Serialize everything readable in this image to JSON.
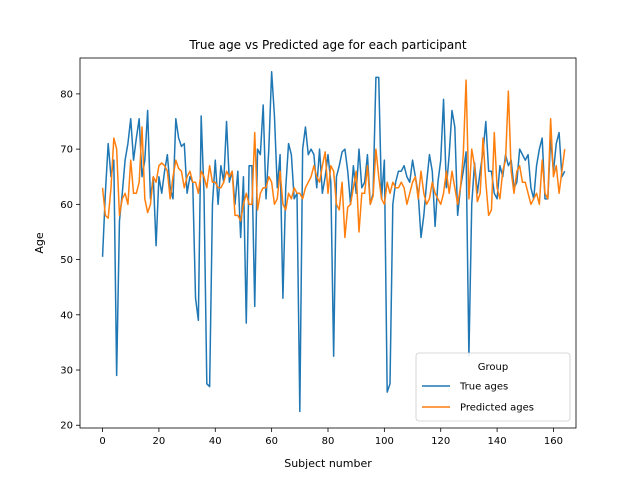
{
  "chart_data": {
    "type": "line",
    "title": "True age vs Predicted age for each participant",
    "xlabel": "Subject number",
    "ylabel": "Age",
    "xlim": [
      -8,
      168
    ],
    "ylim": [
      19.5,
      86.5
    ],
    "xticks": [
      0,
      20,
      40,
      60,
      80,
      100,
      120,
      140,
      160
    ],
    "yticks": [
      20,
      30,
      40,
      50,
      60,
      70,
      80
    ],
    "grid": false,
    "legend": {
      "title": "Group",
      "placement": "lower-right"
    },
    "series": [
      {
        "name": "True ages",
        "color": "#1f77b4",
        "values": [
          50.5,
          62,
          71,
          65,
          68,
          29,
          57,
          62,
          68,
          71,
          75.5,
          68,
          72,
          75.5,
          65,
          68,
          77,
          61,
          65,
          52.5,
          65,
          62,
          66,
          69,
          63,
          61,
          75.5,
          72,
          70.5,
          71,
          62,
          65,
          64,
          43,
          39,
          76,
          62,
          27.5,
          27,
          60,
          68,
          60,
          67,
          64,
          75,
          64,
          66,
          60,
          66,
          54,
          65,
          38.5,
          67,
          67,
          41.5,
          70,
          69,
          78,
          61,
          70,
          84,
          76,
          63,
          69,
          43,
          63,
          71,
          69,
          61,
          62,
          22.5,
          70,
          74,
          69,
          70,
          69,
          63,
          70,
          62,
          65,
          69,
          64,
          32.5,
          65,
          67,
          69.5,
          70,
          66,
          60,
          67,
          62,
          70,
          63,
          64,
          69,
          60,
          62,
          83,
          83,
          61,
          68,
          26,
          27.5,
          60,
          64,
          66,
          66,
          67,
          65,
          64,
          68,
          65,
          62,
          54,
          58,
          64,
          69,
          66,
          56,
          64,
          68,
          79,
          63,
          69,
          77,
          74,
          58,
          63,
          66,
          69.5,
          32.5,
          60,
          67.5,
          62,
          66,
          69.5,
          75,
          66,
          66,
          62,
          61,
          67,
          65,
          69,
          67,
          68,
          63,
          64,
          70,
          69,
          68,
          69,
          63,
          61,
          67,
          70,
          72,
          61,
          61,
          72,
          66,
          71,
          73,
          65,
          66
        ]
      },
      {
        "name": "Predicted ages",
        "color": "#ff7f0e",
        "values": [
          63,
          58,
          57.5,
          63,
          72,
          70,
          58,
          61,
          62,
          60,
          68,
          62,
          62,
          64,
          74,
          61,
          58.5,
          60,
          65,
          64,
          67,
          67.5,
          67,
          66,
          61,
          65,
          68,
          66.5,
          66,
          63,
          65,
          66,
          64,
          64,
          62,
          66,
          65,
          63,
          67,
          64,
          64,
          63,
          63,
          64,
          66,
          65,
          66,
          58,
          58,
          57,
          60,
          62,
          60,
          60,
          73,
          59,
          62,
          63,
          63,
          65,
          64,
          60,
          61,
          66,
          60,
          59,
          62,
          61,
          63,
          62,
          62,
          61,
          63,
          64,
          65,
          67,
          65,
          64,
          67,
          69.5,
          62,
          67,
          66,
          60,
          59,
          64,
          54,
          59.5,
          60,
          63,
          66,
          55,
          62,
          62,
          67,
          60,
          61.5,
          70,
          65,
          61,
          60,
          64,
          62,
          64,
          63,
          63,
          64,
          63,
          60,
          62,
          64,
          65,
          61,
          66,
          62,
          60,
          61,
          64,
          62,
          61,
          60,
          62,
          66,
          62,
          66,
          63,
          60,
          63,
          69,
          82.5,
          61,
          70,
          67,
          60.5,
          62,
          72,
          64,
          58,
          59,
          73,
          63,
          61,
          66,
          68,
          80.5,
          66,
          62,
          66,
          67,
          64,
          64,
          62,
          60,
          61,
          62,
          60,
          68,
          62,
          61,
          75.5,
          65,
          67,
          62,
          66,
          70
        ]
      }
    ]
  }
}
